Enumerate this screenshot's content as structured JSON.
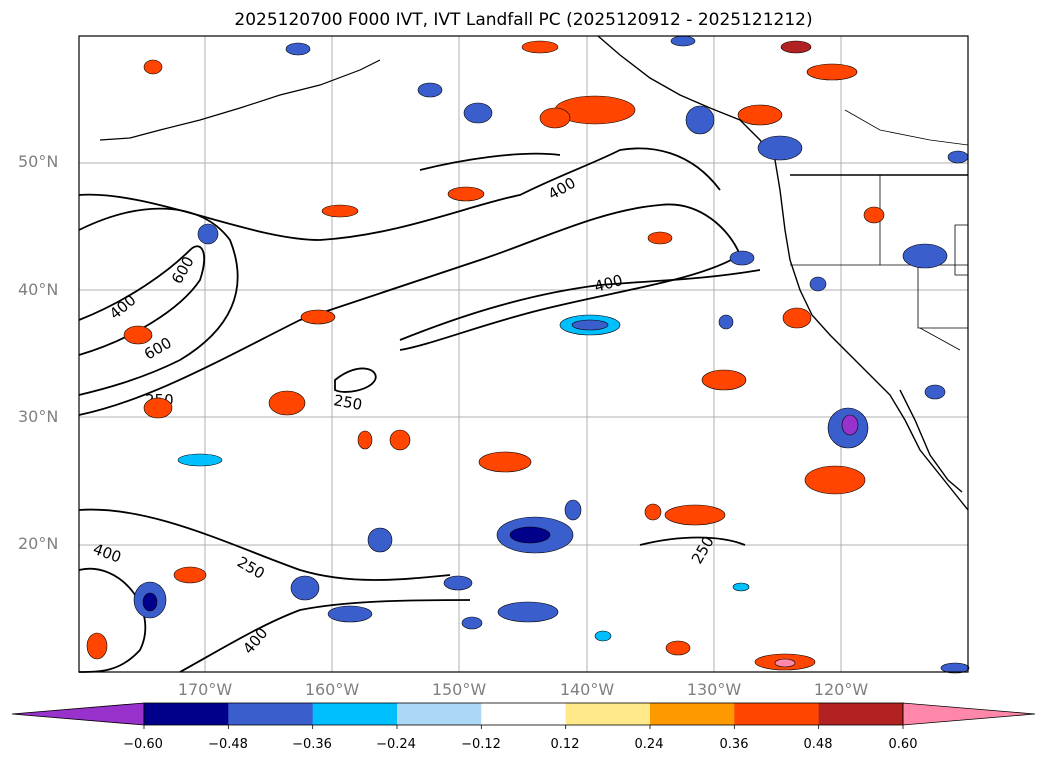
{
  "title": "2025120700 F000 IVT, IVT Landfall PC (2025120912 - 2025121212)",
  "map": {
    "lat_labels": [
      "50°N",
      "40°N",
      "30°N",
      "20°N"
    ],
    "lon_labels": [
      "170°W",
      "160°W",
      "150°W",
      "140°W",
      "130°W",
      "120°W"
    ],
    "contour_labels": [
      "400",
      "400",
      "400",
      "600",
      "600",
      "250",
      "250",
      "400",
      "250",
      "400",
      "250"
    ],
    "gridlines": true
  },
  "colorbar": {
    "ticks": [
      "−0.60",
      "−0.48",
      "−0.36",
      "−0.24",
      "−0.12",
      "0.12",
      "0.24",
      "0.36",
      "0.48",
      "0.60"
    ],
    "colors": [
      "#9932cc",
      "#00008b",
      "#3a5fcd",
      "#00bfff",
      "#add8f5",
      "#ffffff",
      "#ffe98a",
      "#ff9900",
      "#ff4500",
      "#b22222",
      "#ff88aa"
    ]
  }
}
